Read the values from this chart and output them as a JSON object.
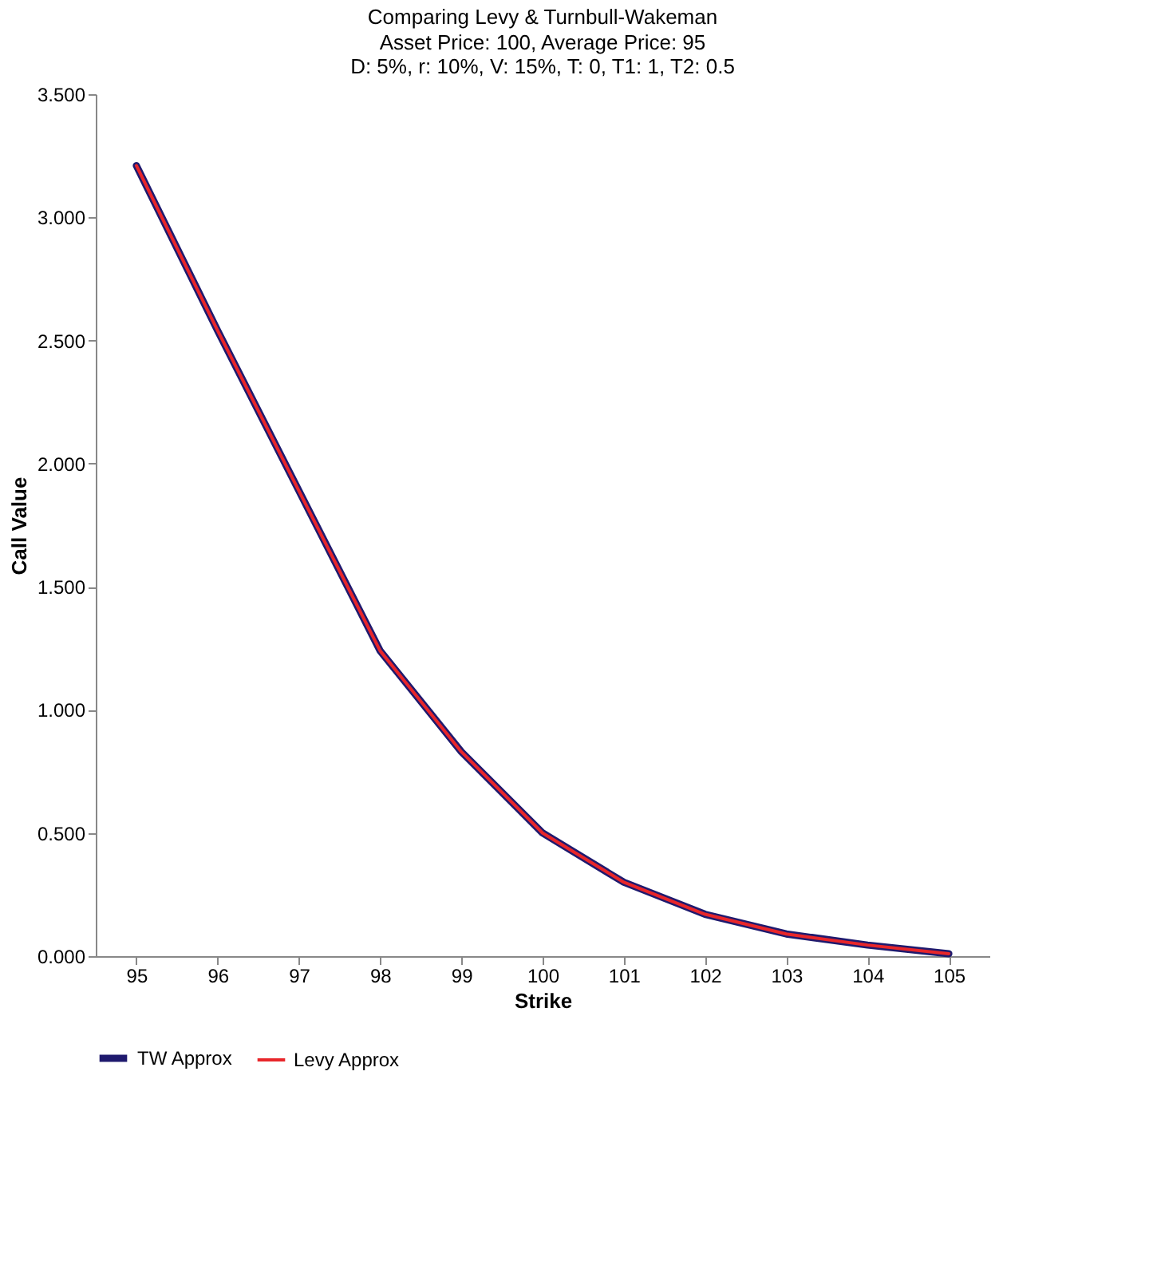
{
  "chart_data": {
    "type": "line",
    "title": "Comparing Levy & Turnbull-Wakeman",
    "subtitle": "Asset Price: 100, Average Price: 95\nD: 5%, r: 10%, V: 15%, T: 0, T1: 1, T2: 0.5",
    "xlabel": "Strike",
    "ylabel": "Call Value",
    "categories": [
      "95",
      "96",
      "97",
      "98",
      "99",
      "100",
      "101",
      "102",
      "103",
      "104",
      "105"
    ],
    "series": [
      {
        "name": "TW Approx",
        "color": "#1f1a6e",
        "values": [
          3.21,
          2.54,
          1.89,
          1.24,
          0.83,
          0.5,
          0.3,
          0.17,
          0.09,
          0.045,
          0.01
        ]
      },
      {
        "name": "Levy Approx",
        "color": "#e8262a",
        "values": [
          3.21,
          2.54,
          1.89,
          1.24,
          0.83,
          0.5,
          0.3,
          0.17,
          0.09,
          0.045,
          0.01
        ]
      }
    ],
    "ylim": [
      0,
      3.5
    ],
    "yticks": [
      {
        "value": 0,
        "label": "0.000"
      },
      {
        "value": 0.5,
        "label": "0.500"
      },
      {
        "value": 1,
        "label": "1.000"
      },
      {
        "value": 1.5,
        "label": "1.500"
      },
      {
        "value": 2,
        "label": "2.000"
      },
      {
        "value": 2.5,
        "label": "2.500"
      },
      {
        "value": 3,
        "label": "3.000"
      },
      {
        "value": 3.5,
        "label": "3.500"
      }
    ],
    "grid": false,
    "legend": "bottom",
    "marker": "none",
    "line_style": "solid"
  }
}
